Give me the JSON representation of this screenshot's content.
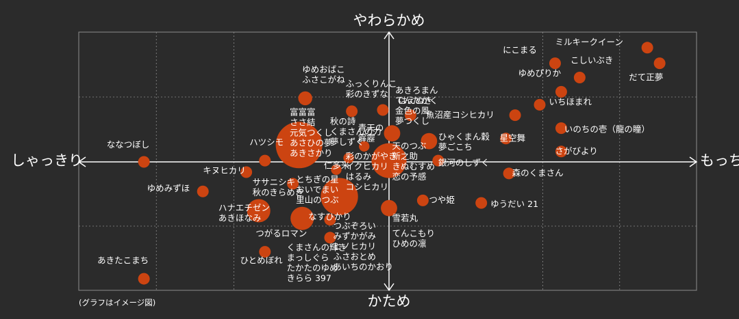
{
  "chart_data": {
    "type": "scatter",
    "note": "(グラフはイメージ図)",
    "axes": {
      "top": "やわらかめ",
      "bottom": "かため",
      "left": "しゃっきり",
      "right": "もっちり"
    },
    "xlim": [
      -10,
      10
    ],
    "ylim": [
      -10,
      10
    ],
    "grid": true,
    "colors": {
      "bubble": "#cc4411",
      "grid": "#8c8c8c",
      "axis": "#ffffff",
      "background": "#2b2b2b"
    },
    "points": [
      {
        "x": 8.4,
        "y": 8.8,
        "r": 1.0,
        "label": "ミルキークイーン",
        "lx": 5.4,
        "ly": 9.0
      },
      {
        "x": 8.8,
        "y": 7.6,
        "r": 1.0,
        "label": "だて正夢",
        "lx": 7.8,
        "ly": 6.3
      },
      {
        "x": 5.4,
        "y": 7.6,
        "r": 1.0,
        "label": "にこまる",
        "lx": 3.7,
        "ly": 8.4
      },
      {
        "x": 6.2,
        "y": 6.5,
        "r": 1.0,
        "label": "こしいぶき",
        "lx": 5.9,
        "ly": 7.6
      },
      {
        "x": 5.6,
        "y": 5.4,
        "r": 1.0,
        "label": "ゆめぴりか",
        "lx": 4.2,
        "ly": 6.6
      },
      {
        "x": 4.9,
        "y": 4.4,
        "r": 1.0,
        "label": "いちほまれ",
        "lx": 5.2,
        "ly": 4.4
      },
      {
        "x": 4.1,
        "y": 3.6,
        "r": 1.0,
        "label": "魚沼産コシヒカリ",
        "lx": 1.2,
        "ly": 3.4
      },
      {
        "x": 5.6,
        "y": 2.6,
        "r": 1.0,
        "label": "いのちの壱（龍の瞳）",
        "lx": 5.7,
        "ly": 2.3
      },
      {
        "x": 3.8,
        "y": 1.8,
        "r": 1.0,
        "label": "星空舞",
        "lx": 3.6,
        "ly": 1.6
      },
      {
        "x": 5.6,
        "y": 0.8,
        "r": 1.0,
        "label": "さがびより",
        "lx": 5.4,
        "ly": 0.6
      },
      {
        "x": 3.9,
        "y": -0.9,
        "r": 1.0,
        "label": "森のくまさん",
        "lx": 4.0,
        "ly": -1.1
      },
      {
        "x": 3.0,
        "y": -3.2,
        "r": 1.0,
        "label": "ゆうだい 21",
        "lx": 3.3,
        "ly": -3.5
      },
      {
        "x": 0.7,
        "y": 3.6,
        "r": 1.0,
        "label": "はえぬき",
        "lx": 0.3,
        "ly": 4.5
      },
      {
        "x": 1.3,
        "y": 1.6,
        "r": 1.4,
        "label": "ひゃくまん穀\n夢ごこち",
        "lx": 1.6,
        "ly": 1.7
      },
      {
        "x": 1.6,
        "y": 0.1,
        "r": 1.0,
        "label": "銀河のしずく",
        "lx": 1.6,
        "ly": -0.3
      },
      {
        "x": 1.1,
        "y": -3.0,
        "r": 1.0,
        "label": "つや姫",
        "lx": 1.3,
        "ly": -3.2
      },
      {
        "x": -0.2,
        "y": 4.0,
        "r": 1.0,
        "label": "あきろまん\nてんたかく\n金色の風\n夢つくし",
        "lx": 0.2,
        "ly": 5.3
      },
      {
        "x": 0.1,
        "y": 2.2,
        "r": 1.4,
        "label": "",
        "lx": 0,
        "ly": 0
      },
      {
        "x": 0.0,
        "y": 0.1,
        "r": 3.0,
        "label": "天のつぶ\n新之助\nきぬむすめ\n恋の予感",
        "lx": 0.1,
        "ly": 1.0
      },
      {
        "x": 0.0,
        "y": -3.6,
        "r": 1.4,
        "label": "雪若丸",
        "lx": 0.1,
        "ly": -4.6
      },
      {
        "x": 0.1,
        "y": -7.2,
        "r": 0,
        "label": "てんこもり\nひめの凛",
        "lx": 0.1,
        "ly": -5.8
      },
      {
        "x": -7.9,
        "y": 0.0,
        "r": 1.0,
        "label": "ななつぼし",
        "lx": -9.1,
        "ly": 1.1
      },
      {
        "x": -6.0,
        "y": -2.3,
        "r": 1.0,
        "label": "ゆめみずほ",
        "lx": -7.8,
        "ly": -2.3
      },
      {
        "x": -4.6,
        "y": -0.8,
        "r": 1.0,
        "label": "キヌヒカリ",
        "lx": -6.0,
        "ly": -0.9
      },
      {
        "x": -4.0,
        "y": 0.1,
        "r": 1.0,
        "label": "ハツシモ",
        "lx": -4.5,
        "ly": 1.3
      },
      {
        "x": -4.2,
        "y": -3.8,
        "r": 2.0,
        "label": "ハナエチゼン\nあきほなみ",
        "lx": -5.5,
        "ly": -3.8
      },
      {
        "x": -3.1,
        "y": -1.7,
        "r": 1.0,
        "label": "ササニシキ\n秋のきらめき",
        "lx": -4.4,
        "ly": -1.8
      },
      {
        "x": -1.9,
        "y": -5.9,
        "r": 1.0,
        "label": "つがるロマン",
        "lx": -4.3,
        "ly": -5.8
      },
      {
        "x": -4.0,
        "y": -7.0,
        "r": 1.0,
        "label": "ひとめぼれ",
        "lx": -4.8,
        "ly": -7.9
      },
      {
        "x": -7.9,
        "y": -9.1,
        "r": 1.0,
        "label": "あきたこまち",
        "lx": -9.4,
        "ly": -7.9
      },
      {
        "x": -2.9,
        "y": 1.3,
        "r": 4.0,
        "label": "富富富\nささ結\n元気つくし\nあさひの夢\nあきさかり",
        "lx": -3.2,
        "ly": 3.6
      },
      {
        "x": -2.7,
        "y": 4.9,
        "r": 1.2,
        "label": "ゆめおばこ\nふさこがね",
        "lx": -2.8,
        "ly": 6.9
      },
      {
        "x": -1.2,
        "y": 3.9,
        "r": 1.0,
        "label": "ふっくりんこ\n彩のきずな",
        "lx": -1.4,
        "ly": 5.8
      },
      {
        "x": -0.9,
        "y": 2.8,
        "r": 0,
        "label": "秋の詩\nくまさんの力\n夢しずく",
        "lx": -1.9,
        "ly": 2.9
      },
      {
        "x": -0.8,
        "y": 1.2,
        "r": 0.9,
        "label": "青天の\n霹靂",
        "lx": -1.0,
        "ly": 2.4
      },
      {
        "x": -1.3,
        "y": 0.3,
        "r": 0.9,
        "label": "彩のかがやき\nイクヒカリ\nはるみ\nコシヒカリ",
        "lx": -1.4,
        "ly": 0.2
      },
      {
        "x": -1.7,
        "y": -0.6,
        "r": 0.9,
        "label": "仁多米",
        "lx": -2.1,
        "ly": -0.5
      },
      {
        "x": -1.6,
        "y": -2.7,
        "r": 3.2,
        "label": "",
        "lx": 0,
        "ly": 0
      },
      {
        "x": -2.8,
        "y": -4.4,
        "r": 2.0,
        "label": "とちぎの星\nおいでまい\n里山のつぶ",
        "lx": -3.0,
        "ly": -1.6
      },
      {
        "x": -1.9,
        "y": -4.5,
        "r": 1.0,
        "label": "なすひかり",
        "lx": -2.6,
        "ly": -4.5
      },
      {
        "x": -1.3,
        "y": -6.2,
        "r": 0,
        "label": "つぶぞろい\nみずかがみ\nヒノヒカリ\nふさおとめ\nあいちのかおり",
        "lx": -1.8,
        "ly": -5.2
      },
      {
        "x": -3.2,
        "y": -8.0,
        "r": 0,
        "label": "くまさんの輝き\nまっしぐら\nたかたのゆめ\nきらら 397",
        "lx": -3.3,
        "ly": -6.9
      }
    ]
  }
}
